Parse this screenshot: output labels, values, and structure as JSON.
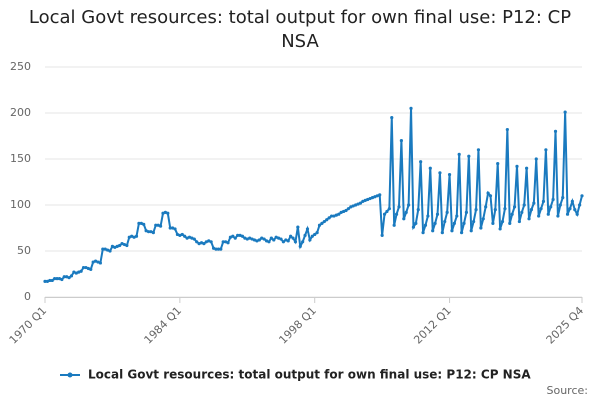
{
  "chart_data": {
    "type": "line",
    "title": "Local Govt resources: total output for own final use: P12: CP NSA",
    "source": "Source:",
    "categories": [
      "1970 Q1",
      null,
      null,
      null,
      null,
      null,
      null,
      null,
      null,
      null,
      null,
      null,
      null,
      null,
      null,
      null,
      null,
      null,
      null,
      null,
      null,
      null,
      null,
      null,
      null,
      null,
      null,
      null,
      null,
      null,
      null,
      null,
      null,
      null,
      null,
      null,
      null,
      null,
      null,
      null,
      null,
      null,
      null,
      null,
      null,
      null,
      null,
      null,
      null,
      null,
      null,
      null,
      null,
      null,
      null,
      null,
      "1984 Q1",
      null,
      null,
      null,
      null,
      null,
      null,
      null,
      null,
      null,
      null,
      null,
      null,
      null,
      null,
      null,
      null,
      null,
      null,
      null,
      null,
      null,
      null,
      null,
      null,
      null,
      null,
      null,
      null,
      null,
      null,
      null,
      null,
      null,
      null,
      null,
      null,
      null,
      null,
      null,
      null,
      null,
      null,
      null,
      null,
      null,
      null,
      null,
      null,
      null,
      null,
      null,
      null,
      null,
      null,
      null,
      "1998 Q1",
      null,
      null,
      null,
      null,
      null,
      null,
      null,
      null,
      null,
      null,
      null,
      null,
      null,
      null,
      null,
      null,
      null,
      null,
      null,
      null,
      null,
      null,
      null,
      null,
      null,
      null,
      null,
      null,
      null,
      null,
      null,
      null,
      null,
      null,
      null,
      null,
      null,
      null,
      null,
      null,
      null,
      null,
      null,
      null,
      null,
      null,
      null,
      null,
      null,
      null,
      null,
      null,
      null,
      null,
      null,
      "2012 Q1",
      null,
      null,
      null,
      null,
      null,
      null,
      null,
      null,
      null,
      null,
      null,
      null,
      null,
      null,
      null,
      null,
      null,
      null,
      null,
      null,
      null,
      null,
      null,
      null,
      null,
      null,
      null,
      null,
      null,
      null,
      null,
      null,
      null,
      null,
      null,
      null,
      null,
      null,
      null,
      null,
      null,
      null,
      null,
      null,
      null,
      null,
      null,
      null,
      null,
      null,
      null,
      null,
      null,
      null,
      "2025 Q4"
    ],
    "series": [
      {
        "name": "Local Govt resources: total output for own final use: P12: CP NSA",
        "color": "#1a7abf",
        "values": [
          17,
          17,
          18,
          18,
          20,
          20,
          20,
          19,
          22,
          22,
          21,
          23,
          27,
          26,
          27,
          28,
          32,
          32,
          31,
          30,
          38,
          39,
          38,
          37,
          52,
          52,
          51,
          50,
          55,
          54,
          55,
          56,
          58,
          57,
          56,
          65,
          66,
          65,
          66,
          80,
          80,
          79,
          72,
          71,
          71,
          70,
          78,
          78,
          77,
          91,
          92,
          91,
          75,
          75,
          74,
          68,
          67,
          68,
          66,
          64,
          65,
          64,
          63,
          60,
          58,
          59,
          58,
          60,
          61,
          60,
          53,
          52,
          52,
          52,
          60,
          60,
          59,
          65,
          66,
          64,
          67,
          67,
          66,
          64,
          63,
          64,
          63,
          62,
          61,
          62,
          64,
          63,
          61,
          60,
          64,
          62,
          65,
          64,
          63,
          60,
          62,
          61,
          66,
          64,
          60,
          76,
          55,
          60,
          67,
          74,
          62,
          66,
          68,
          70,
          78,
          80,
          82,
          84,
          86,
          88,
          88,
          89,
          90,
          92,
          93,
          94,
          96,
          98,
          99,
          100,
          101,
          102,
          104,
          105,
          106,
          107,
          108,
          109,
          110,
          111,
          67,
          90,
          93,
          96,
          195,
          78,
          90,
          98,
          170,
          85,
          92,
          100,
          205,
          76,
          80,
          95,
          147,
          70,
          78,
          88,
          140,
          72,
          80,
          90,
          135,
          70,
          82,
          92,
          133,
          72,
          80,
          88,
          155,
          70,
          80,
          92,
          153,
          72,
          82,
          95,
          160,
          75,
          85,
          98,
          113,
          110,
          80,
          95,
          145,
          74,
          82,
          96,
          182,
          80,
          90,
          98,
          142,
          82,
          92,
          100,
          140,
          85,
          95,
          102,
          150,
          88,
          96,
          104,
          160,
          90,
          98,
          106,
          180,
          88,
          100,
          108,
          201,
          90,
          96,
          104,
          95,
          90,
          100,
          110
        ]
      }
    ],
    "ylim": [
      0,
      250
    ],
    "yticks": [
      0,
      50,
      100,
      150,
      200,
      250
    ],
    "grid": true
  }
}
